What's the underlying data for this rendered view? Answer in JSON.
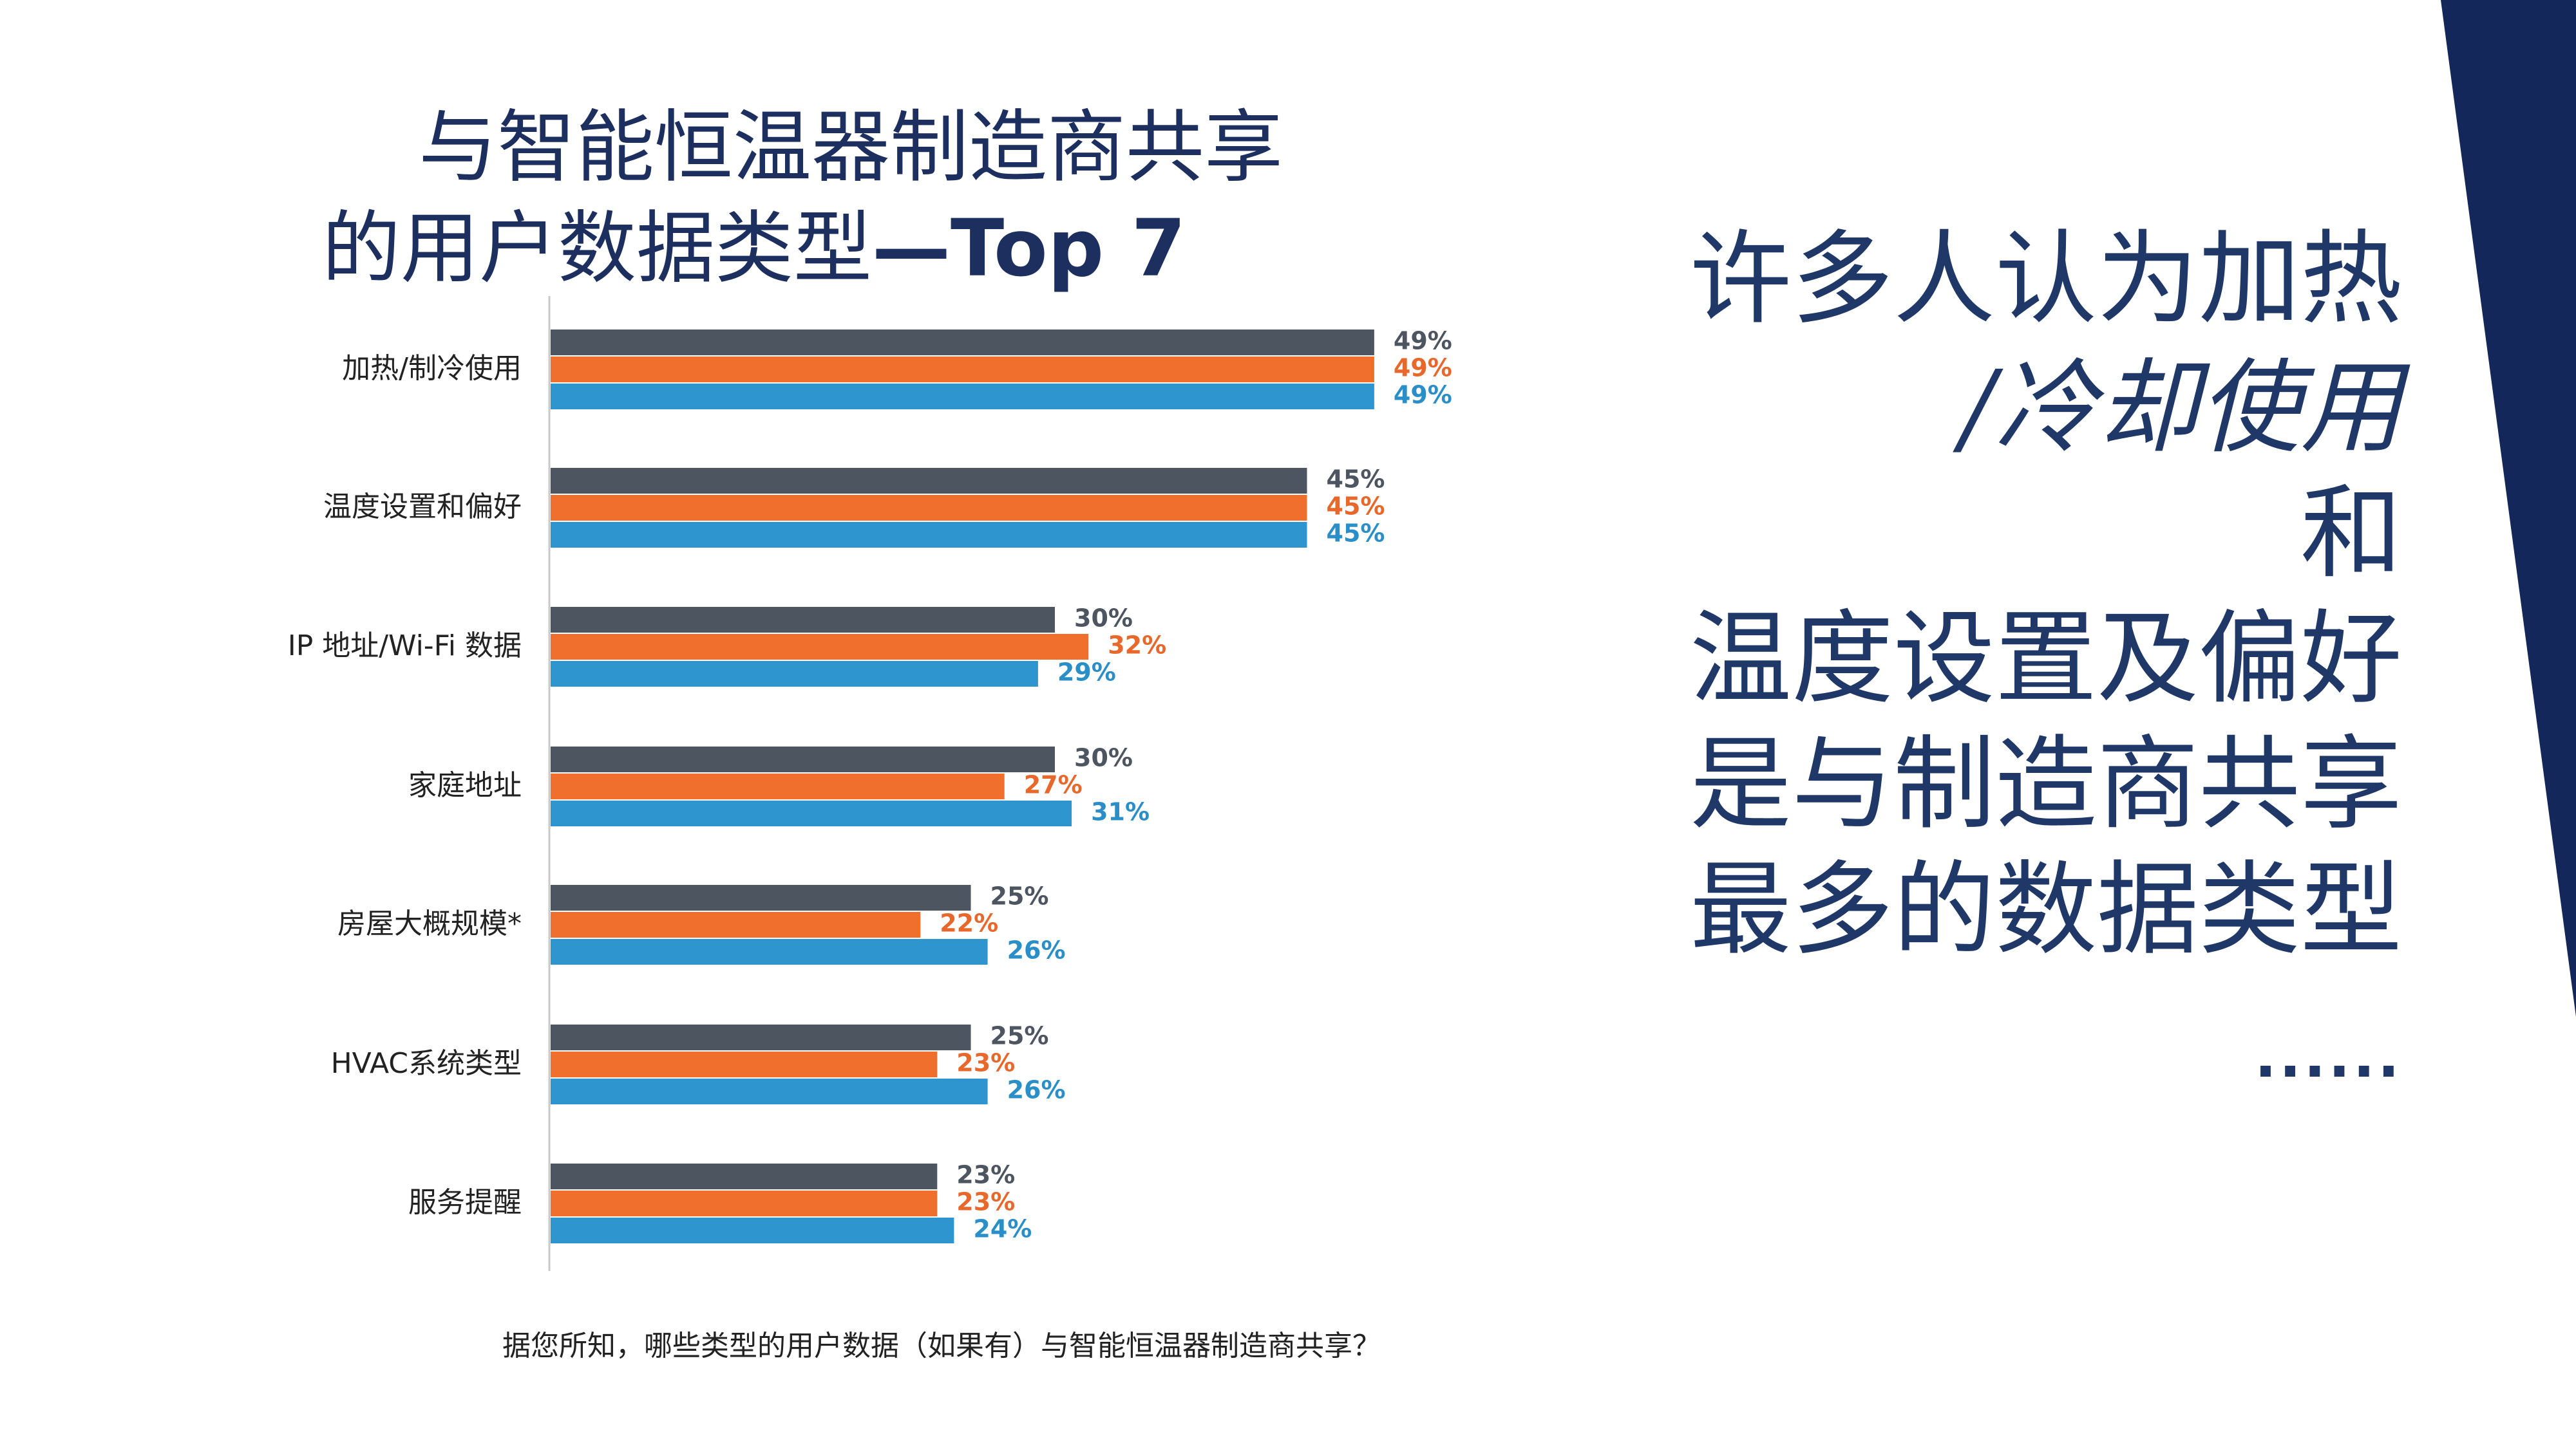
{
  "slide": {
    "title_line1": "与智能恒温器制造商共享",
    "title_line2": "的用户数据类型",
    "title_suffix": "—Top 7",
    "question": "据您所知，哪些类型的用户数据（如果有）与智能恒温器制造商共享？",
    "message_lines": [
      "许多人认为加热",
      "/冷却使用",
      "和",
      "温度设置及偏好",
      "是与制造商共享",
      "最多的数据类型"
    ],
    "ellipsis": "......",
    "accent_color": "#13275a"
  },
  "chart_data": {
    "type": "bar",
    "orientation": "horizontal",
    "categories": [
      "加热/制冷使用",
      "温度设置和偏好",
      "IP 地址/Wi-Fi 数据",
      "家庭地址",
      "房屋大概规模*",
      "HVAC系统类型",
      "服务提醒"
    ],
    "series": [
      {
        "color": "#4d5561",
        "values": [
          49,
          45,
          30,
          30,
          25,
          25,
          23
        ]
      },
      {
        "color": "#f06f2d",
        "values": [
          49,
          45,
          32,
          27,
          22,
          23,
          23
        ]
      },
      {
        "color": "#2e95ce",
        "values": [
          49,
          45,
          29,
          31,
          26,
          26,
          24
        ]
      }
    ],
    "value_suffix": "%",
    "xlim": [
      0,
      60
    ],
    "grid": false,
    "legend": "none"
  }
}
